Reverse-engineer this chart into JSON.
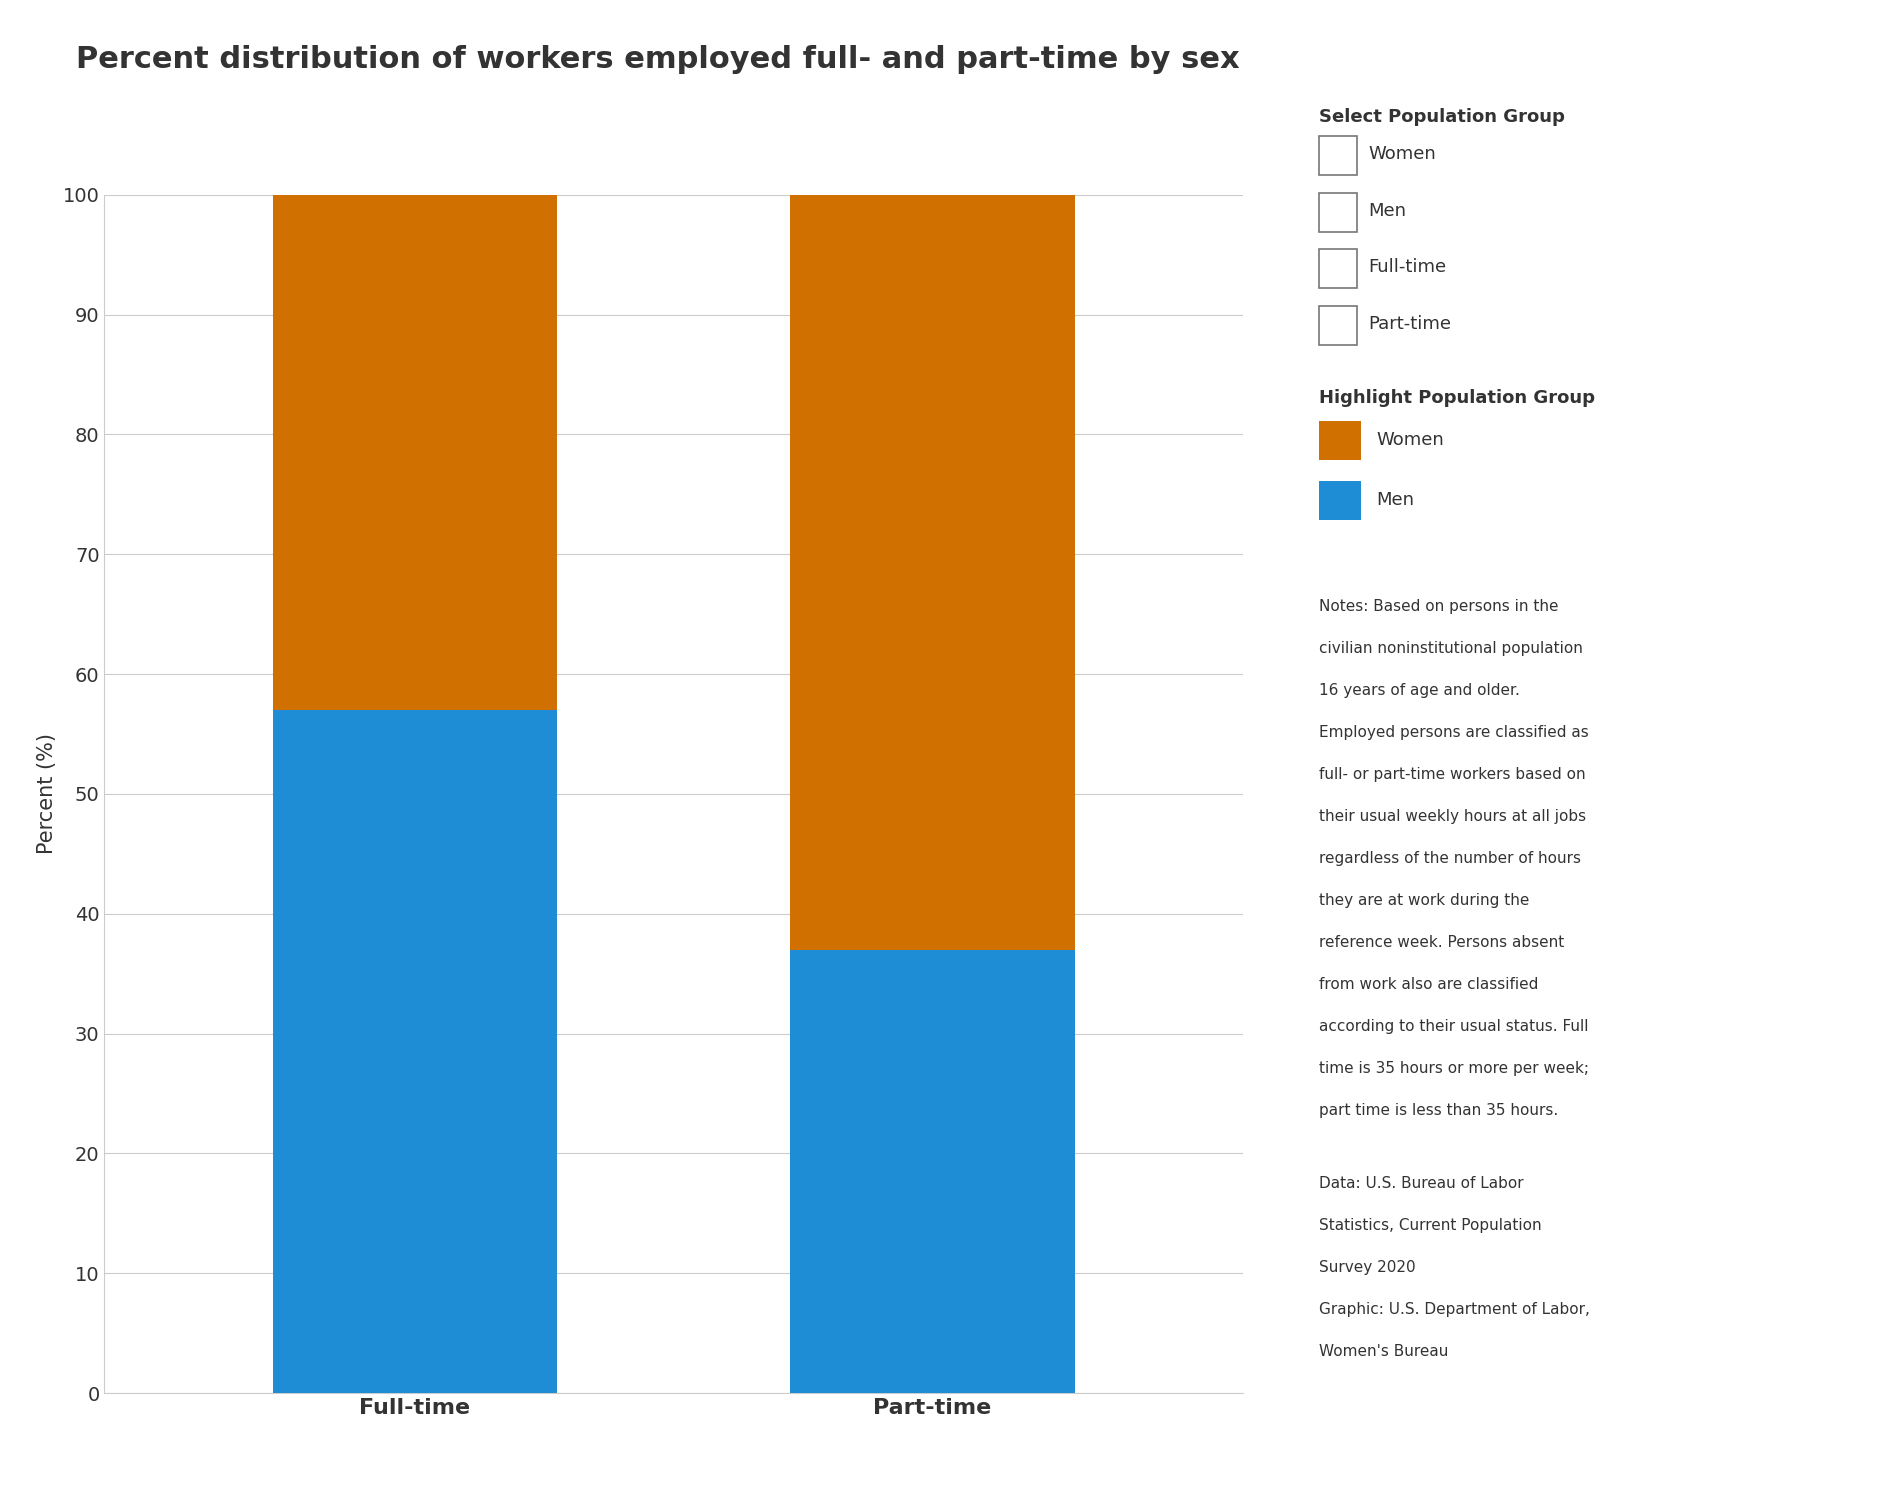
{
  "title": "Percent distribution of workers employed full- and part-time by sex",
  "categories": [
    "Full-time",
    "Part-time"
  ],
  "men_values": [
    57.0,
    37.0
  ],
  "women_values": [
    43.0,
    63.0
  ],
  "men_color": "#1f8dd6",
  "women_color": "#d07000",
  "ylabel": "Percent (%)",
  "ylim": [
    0,
    100
  ],
  "yticks": [
    0,
    10,
    20,
    30,
    40,
    50,
    60,
    70,
    80,
    90,
    100
  ],
  "background_color": "#ffffff",
  "title_fontsize": 22,
  "axis_label_fontsize": 15,
  "tick_fontsize": 14,
  "xtick_fontsize": 16,
  "legend_title_select": "Select Population Group",
  "legend_items_select": [
    "Women",
    "Men"
  ],
  "legend_items_type": [
    "Full-time",
    "Part-time"
  ],
  "legend_title_highlight": "Highlight Population Group",
  "legend_items_highlight": [
    "Women",
    "Men"
  ],
  "notes_text": "Notes: Based on persons in the civilian noninstitutional population 16 years of age and older. Employed persons are classified as full- or part-time workers based on their usual weekly hours at all jobs regardless of the number of hours they are at work during the reference week. Persons absent from work also are classified according to their usual status. Full time is 35 hours or more per week; part time is less than 35 hours.",
  "data_text": "Data: U.S. Bureau of Labor Statistics, Current Population Survey 2020\nGraphic: U.S. Department of Labor, Women's Bureau",
  "text_color": "#333333",
  "grid_color": "#cccccc",
  "spine_color": "#cccccc"
}
